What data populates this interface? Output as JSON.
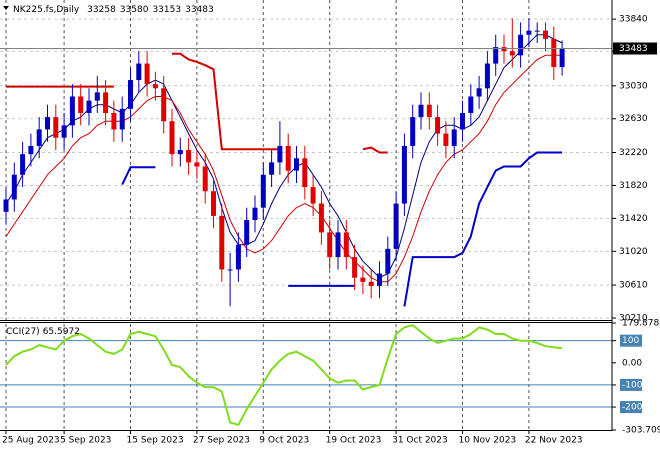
{
  "chart_data": [
    {
      "type": "candlestick",
      "title": "NK225.fs,Daily",
      "categories": [
        "25 Aug 2023",
        null,
        null,
        null,
        null,
        null,
        null,
        "5 Sep 2023",
        null,
        null,
        null,
        null,
        null,
        null,
        null,
        "15 Sep 2023",
        null,
        null,
        null,
        null,
        null,
        null,
        null,
        "27 Sep 2023",
        null,
        null,
        null,
        null,
        null,
        null,
        null,
        "9 Oct 2023",
        null,
        null,
        null,
        null,
        null,
        null,
        null,
        "19 Oct 2023",
        null,
        null,
        null,
        null,
        null,
        null,
        null,
        "31 Oct 2023",
        null,
        null,
        null,
        null,
        null,
        null,
        null,
        "10 Nov 2023",
        null,
        null,
        null,
        null,
        null,
        null,
        null,
        "22 Nov 2023",
        null,
        null,
        null,
        null
      ],
      "open": [
        31500,
        31650,
        31950,
        32200,
        32300,
        32500,
        32650,
        32400,
        32550,
        32900,
        32700,
        32850,
        32950,
        32700,
        32500,
        32750,
        33100,
        33300,
        33050,
        33000,
        32600,
        32200,
        32250,
        32100,
        32050,
        31750,
        31450,
        30800,
        30800,
        31100,
        31400,
        31550,
        31950,
        32100,
        32300,
        32000,
        32150,
        31800,
        31600,
        31250,
        30950,
        31250,
        30950,
        30700,
        30650,
        30600,
        30750,
        31050,
        31600,
        32300,
        32650,
        32800,
        32650,
        32450,
        32300,
        32500,
        32700,
        32900,
        33000,
        33300,
        33500,
        33450,
        33400,
        33650,
        33700,
        33700,
        33600,
        33258
      ],
      "high": [
        31800,
        32100,
        32350,
        32450,
        32650,
        32800,
        32800,
        32700,
        33050,
        33050,
        33000,
        33150,
        33100,
        32850,
        32900,
        33250,
        33450,
        33450,
        33200,
        33150,
        32750,
        32400,
        32400,
        32250,
        32200,
        31900,
        31600,
        31000,
        31250,
        31550,
        31700,
        32100,
        32250,
        32600,
        32450,
        32300,
        32300,
        31950,
        31750,
        31400,
        31400,
        31400,
        31100,
        30850,
        30800,
        30900,
        31200,
        31750,
        32450,
        32800,
        32950,
        32950,
        32800,
        32600,
        32650,
        32850,
        33050,
        33150,
        33450,
        33650,
        33650,
        33850,
        33800,
        33850,
        33800,
        33800,
        33750,
        33580
      ],
      "low": [
        31350,
        31500,
        31800,
        32050,
        32150,
        32350,
        32250,
        32250,
        32400,
        32550,
        32550,
        32700,
        32550,
        32350,
        32350,
        32600,
        32950,
        32900,
        32850,
        32450,
        32050,
        32050,
        31950,
        31900,
        31600,
        31300,
        30650,
        30350,
        30650,
        30950,
        31250,
        31400,
        31800,
        31950,
        31850,
        31850,
        31650,
        31450,
        31100,
        30800,
        30800,
        30800,
        30550,
        30500,
        30450,
        30450,
        30600,
        30900,
        31450,
        32150,
        32500,
        32500,
        32300,
        32150,
        32150,
        32350,
        32550,
        32750,
        32850,
        33150,
        33300,
        33250,
        33250,
        33500,
        33550,
        33450,
        33100,
        33153
      ],
      "close": [
        31650,
        31950,
        32200,
        32300,
        32500,
        32650,
        32400,
        32550,
        32900,
        32700,
        32850,
        32950,
        32700,
        32500,
        32750,
        33100,
        33300,
        33050,
        33000,
        32600,
        32200,
        32250,
        32100,
        32050,
        31750,
        31450,
        30800,
        30800,
        31100,
        31400,
        31550,
        31950,
        32100,
        32300,
        32000,
        32150,
        31800,
        31600,
        31250,
        30950,
        31250,
        30950,
        30700,
        30650,
        30600,
        30750,
        31050,
        31600,
        32300,
        32650,
        32800,
        32650,
        32450,
        32300,
        32500,
        32700,
        32900,
        33000,
        33300,
        33500,
        33450,
        33400,
        33650,
        33700,
        33700,
        33600,
        33258,
        33483
      ],
      "up_color": "#0000c0",
      "down_color": "#e00000",
      "series": [
        {
          "color": "#000080",
          "values": [
            31600,
            31750,
            31950,
            32100,
            32250,
            32400,
            32450,
            32500,
            32600,
            32650,
            32750,
            32800,
            32800,
            32750,
            32700,
            32800,
            32950,
            33050,
            33100,
            33050,
            32850,
            32650,
            32450,
            32250,
            32100,
            31900,
            31550,
            31250,
            31100,
            31100,
            31150,
            31350,
            31600,
            31800,
            31950,
            32050,
            32100,
            31950,
            31800,
            31600,
            31450,
            31250,
            31050,
            30900,
            30800,
            30700,
            30750,
            30950,
            31300,
            31700,
            32100,
            32350,
            32500,
            32550,
            32550,
            32500,
            32550,
            32650,
            32850,
            33050,
            33250,
            33350,
            33450,
            33550,
            33650,
            33650,
            33600,
            33550
          ]
        },
        {
          "color": "#d00000",
          "values": [
            31200,
            31350,
            31500,
            31650,
            31800,
            31950,
            32050,
            32150,
            32300,
            32400,
            32450,
            32550,
            32600,
            32600,
            32600,
            32650,
            32750,
            32850,
            32900,
            32900,
            32850,
            32700,
            32500,
            32350,
            32200,
            32000,
            31700,
            31400,
            31200,
            31050,
            31000,
            31050,
            31150,
            31300,
            31450,
            31550,
            31600,
            31550,
            31450,
            31300,
            31150,
            31000,
            30900,
            30800,
            30700,
            30650,
            30650,
            30750,
            30950,
            31200,
            31500,
            31750,
            31950,
            32100,
            32200,
            32250,
            32350,
            32450,
            32600,
            32800,
            32950,
            33050,
            33150,
            33250,
            33350,
            33400,
            33400,
            33400
          ]
        },
        {
          "color": "#d00000",
          "width": 2,
          "values": [
            33020,
            33020,
            33020,
            33020,
            33020,
            33020,
            33020,
            33020,
            33020,
            33020,
            33020,
            33020,
            33020,
            33020,
            null,
            null,
            null,
            null,
            null,
            null,
            33420,
            33420,
            33350,
            33320,
            33280,
            33230,
            32260,
            32260,
            32260,
            32260,
            32260,
            32260,
            32260,
            32260,
            null,
            null,
            null,
            null,
            null,
            null,
            null,
            null,
            null,
            32260,
            32280,
            32220,
            32220,
            null,
            null,
            null,
            null,
            null,
            null,
            null,
            null,
            null,
            null,
            null,
            null,
            null,
            null,
            null,
            null,
            null,
            null,
            null,
            null,
            null
          ]
        },
        {
          "color": "#0000c8",
          "width": 2,
          "values": [
            null,
            null,
            null,
            null,
            null,
            null,
            null,
            null,
            null,
            null,
            null,
            null,
            null,
            null,
            31830,
            32040,
            32040,
            32040,
            32040,
            null,
            null,
            null,
            null,
            null,
            null,
            null,
            null,
            null,
            null,
            null,
            null,
            null,
            null,
            null,
            30600,
            30600,
            30600,
            30600,
            30600,
            30600,
            30600,
            30600,
            30600,
            null,
            null,
            null,
            null,
            null,
            30350,
            30950,
            30950,
            30950,
            30950,
            30950,
            30950,
            31000,
            31200,
            31600,
            31800,
            32000,
            32050,
            32050,
            32050,
            32150,
            32220,
            32220,
            32220,
            32220
          ]
        }
      ],
      "ylim": [
        30186,
        34072
      ],
      "yticks": [
        30210,
        30610,
        31020,
        31420,
        31820,
        32220,
        32630,
        33030,
        33450,
        33840
      ],
      "grid": true
    },
    {
      "type": "line",
      "title": "CCI(27)",
      "series": [
        {
          "color": "#7fdc1e",
          "values": [
            -10,
            30,
            50,
            60,
            80,
            70,
            60,
            100,
            120,
            130,
            110,
            80,
            50,
            40,
            60,
            130,
            140,
            130,
            120,
            60,
            -10,
            -20,
            -60,
            -90,
            -110,
            -110,
            -130,
            -270,
            -280,
            -210,
            -150,
            -90,
            -30,
            10,
            40,
            50,
            30,
            10,
            -30,
            -70,
            -90,
            -80,
            -80,
            -120,
            -110,
            -100,
            20,
            130,
            160,
            170,
            140,
            110,
            90,
            100,
            110,
            110,
            130,
            160,
            150,
            130,
            130,
            110,
            100,
            100,
            90,
            75,
            70,
            65.5972
          ]
        }
      ],
      "ylim": [
        -303.709,
        179.8788
      ],
      "yticks": [
        179.8788,
        100,
        {
          "value": 0,
          "label": "0.00"
        },
        -100,
        -200,
        -303.709
      ],
      "levels": [
        100,
        -100,
        -200
      ],
      "level_color": "#4682b4"
    }
  ]
}
